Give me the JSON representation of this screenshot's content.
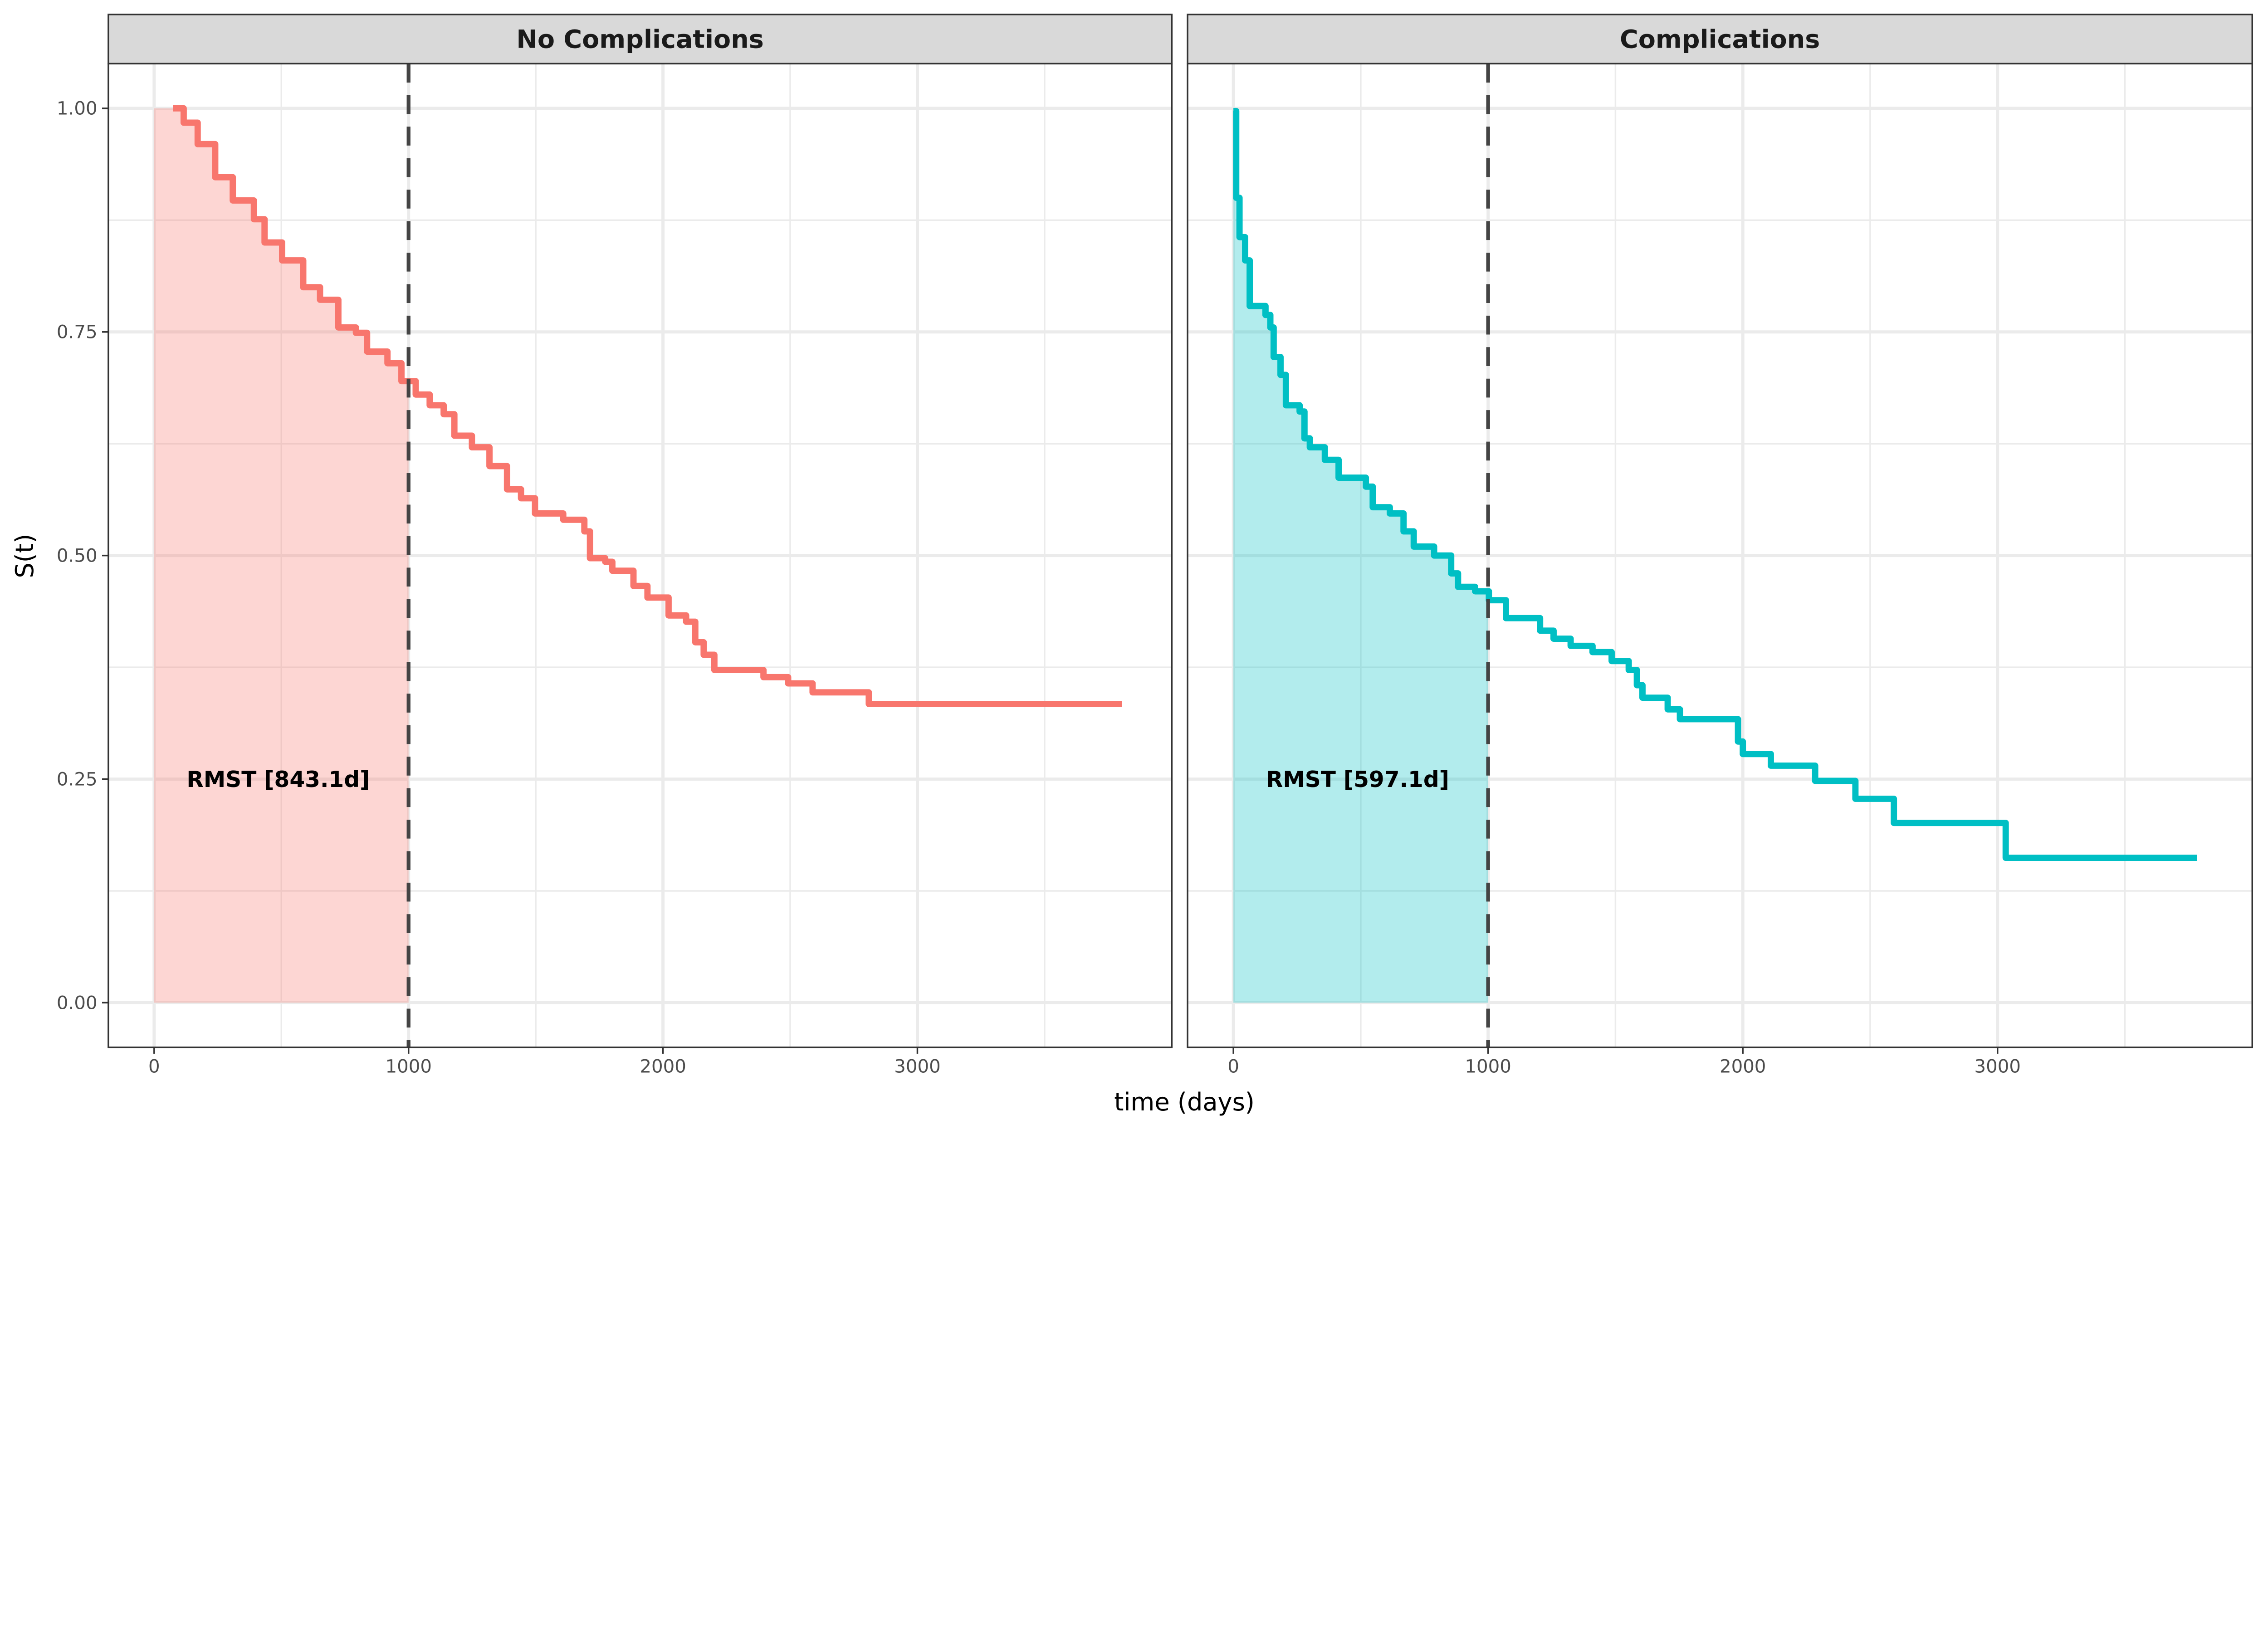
{
  "chart_data": [
    {
      "type": "line",
      "subtype": "step-survival",
      "title": "No Complications",
      "xlabel": "time (days)",
      "ylabel": "S(t)",
      "xlim": [
        -180,
        4000
      ],
      "ylim": [
        -0.05,
        1.05
      ],
      "x_ticks": [
        "0",
        "1000",
        "2000",
        "3000"
      ],
      "y_ticks": [
        "0.00",
        "0.25",
        "0.50",
        "0.75",
        "1.00"
      ],
      "grid": true,
      "color": "#F8766D",
      "tau": 1000,
      "annotation": "RMST [843.1d]",
      "x": [
        75,
        116,
        171,
        240,
        309,
        392,
        434,
        503,
        586,
        652,
        724,
        793,
        837,
        917,
        972,
        1028,
        1083,
        1138,
        1180,
        1249,
        1318,
        1387,
        1442,
        1497,
        1608,
        1691,
        1713,
        1773,
        1801,
        1884,
        1939,
        2022,
        2091,
        2127,
        2160,
        2202,
        2395,
        2492,
        2588,
        2809,
        3804
      ],
      "y": [
        1.0,
        0.984,
        0.96,
        0.923,
        0.897,
        0.876,
        0.85,
        0.83,
        0.8,
        0.786,
        0.755,
        0.749,
        0.728,
        0.715,
        0.695,
        0.68,
        0.668,
        0.658,
        0.634,
        0.621,
        0.6,
        0.574,
        0.564,
        0.547,
        0.54,
        0.527,
        0.497,
        0.493,
        0.483,
        0.466,
        0.453,
        0.433,
        0.426,
        0.403,
        0.389,
        0.372,
        0.364,
        0.357,
        0.347,
        0.334,
        0.334
      ]
    },
    {
      "type": "line",
      "subtype": "step-survival",
      "title": "Complications",
      "xlabel": "time (days)",
      "ylabel": "S(t)",
      "xlim": [
        -180,
        4000
      ],
      "ylim": [
        -0.05,
        1.05
      ],
      "x_ticks": [
        "0",
        "1000",
        "2000",
        "3000"
      ],
      "y_ticks": [
        "0.00",
        "0.25",
        "0.50",
        "0.75",
        "1.00"
      ],
      "grid": true,
      "color": "#00BFC4",
      "tau": 1000,
      "annotation": "RMST [597.1d]",
      "x": [
        0,
        11,
        24,
        46,
        64,
        126,
        145,
        158,
        185,
        206,
        260,
        279,
        300,
        359,
        413,
        520,
        547,
        614,
        668,
        708,
        788,
        855,
        882,
        949,
        1003,
        1070,
        1204,
        1257,
        1324,
        1410,
        1485,
        1552,
        1584,
        1606,
        1705,
        1753,
        1981,
        2000,
        2110,
        2284,
        2442,
        2593,
        3032,
        3783
      ],
      "y": [
        0.997,
        0.9,
        0.856,
        0.83,
        0.779,
        0.769,
        0.755,
        0.722,
        0.702,
        0.668,
        0.661,
        0.631,
        0.621,
        0.607,
        0.587,
        0.577,
        0.554,
        0.547,
        0.527,
        0.51,
        0.5,
        0.48,
        0.465,
        0.46,
        0.45,
        0.43,
        0.416,
        0.407,
        0.399,
        0.392,
        0.382,
        0.372,
        0.355,
        0.341,
        0.328,
        0.317,
        0.292,
        0.278,
        0.265,
        0.248,
        0.228,
        0.201,
        0.162,
        0.162
      ]
    }
  ],
  "shared": {
    "xlabel": "time (days)",
    "ylabel": "S(t)"
  }
}
